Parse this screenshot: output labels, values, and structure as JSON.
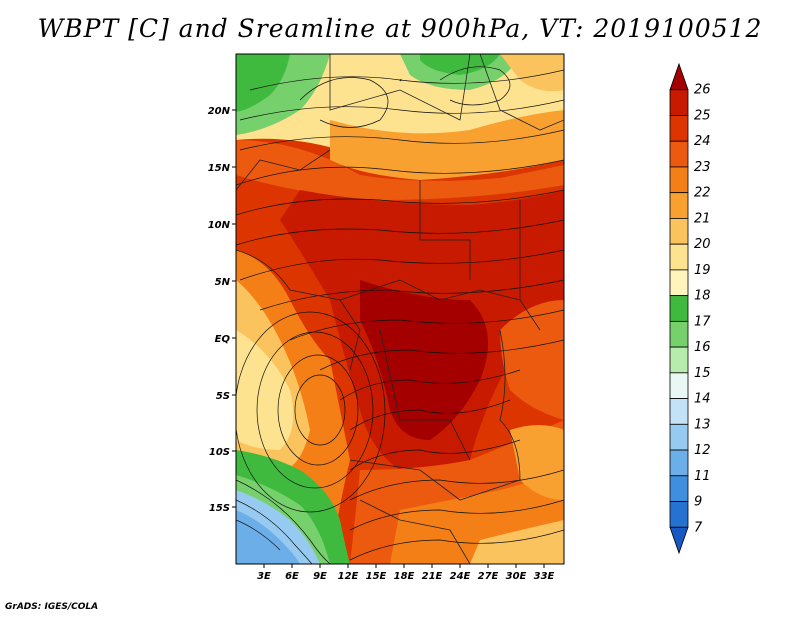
{
  "title": "WBPT [C] and Sreamline at 900hPa, VT: 2019100512",
  "credit": "GrADS: IGES/COLA",
  "map": {
    "lat_ticks": [
      "20N",
      "15N",
      "10N",
      "5N",
      "EQ",
      "5S",
      "10S",
      "15S"
    ],
    "lon_ticks": [
      "3E",
      "6E",
      "9E",
      "12E",
      "15E",
      "18E",
      "21E",
      "24E",
      "27E",
      "30E",
      "33E"
    ]
  },
  "colorbar": {
    "labels": [
      "26",
      "25",
      "24",
      "23",
      "22",
      "21",
      "20",
      "19",
      "18",
      "17",
      "16",
      "15",
      "14",
      "13",
      "12",
      "11",
      "9",
      "7"
    ],
    "colors": [
      "#a50000",
      "#c71a00",
      "#dc3500",
      "#ec5a10",
      "#f57f17",
      "#f8a030",
      "#fbc35e",
      "#fde28f",
      "#fff4bc",
      "#3fba3f",
      "#76d06c",
      "#b7ebae",
      "#e9f7f5",
      "#c3e2f7",
      "#97caf0",
      "#6caee8",
      "#3f8fde",
      "#2672d0",
      "#1858c2"
    ]
  }
}
